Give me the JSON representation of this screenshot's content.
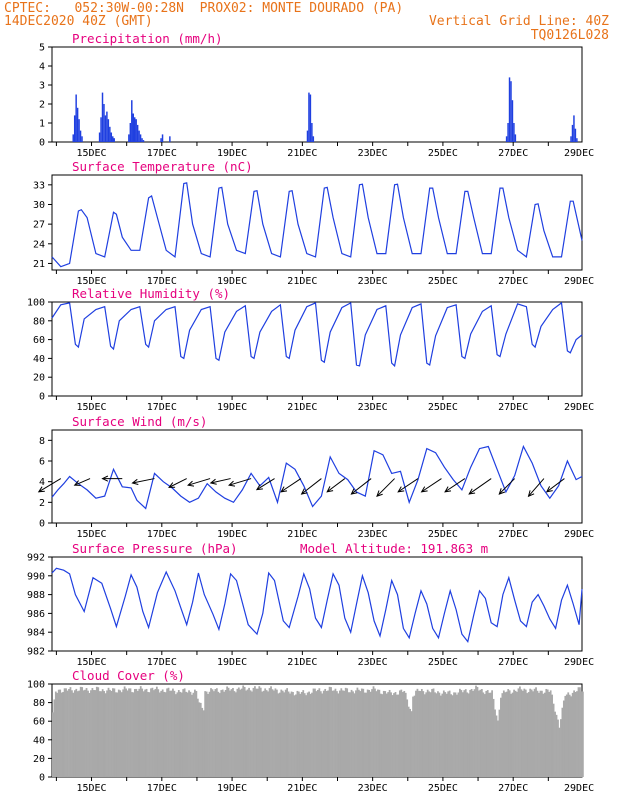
{
  "header": {
    "line1_left": "CPTEC:   052:30W-00:28N  PROX02: MONTE DOURADO (PA)",
    "line2_left": "14DEC2020 40Z (GMT)",
    "line2_right": "Vertical Grid Line: 40Z",
    "line3_right": "TQ0126L028"
  },
  "colors": {
    "header": "#e8731a",
    "title": "#e6007e",
    "series": "#1f3fe0",
    "cloud": "#a9a9a9",
    "wind_arrow": "#000000"
  },
  "chart_data": [
    {
      "id": "precip",
      "type": "bar",
      "title": "Precipitation (mm/h)",
      "xlabel": "",
      "ylabel": "",
      "x_range_hours": [
        0,
        362
      ],
      "ylim": [
        0,
        5
      ],
      "yticks": [
        0,
        1,
        2,
        3,
        4,
        5
      ],
      "xticks": [
        "15DEC",
        "17DEC",
        "19DEC",
        "21DEC",
        "23DEC",
        "25DEC",
        "27DEC",
        "29DEC"
      ],
      "hours": [
        14,
        15,
        16,
        17,
        18,
        19,
        20,
        32,
        33,
        34,
        35,
        36,
        37,
        38,
        39,
        40,
        41,
        42,
        52,
        53,
        54,
        55,
        56,
        57,
        58,
        59,
        60,
        61,
        62,
        74,
        75,
        80,
        174,
        175,
        176,
        177,
        178,
        310,
        311,
        312,
        313,
        314,
        315,
        316,
        354,
        355,
        356,
        357,
        358
      ],
      "values": [
        0.4,
        1.4,
        2.5,
        1.8,
        1.2,
        0.6,
        0.3,
        0.5,
        1.3,
        2.6,
        2.0,
        1.4,
        1.6,
        1.2,
        0.8,
        0.5,
        0.3,
        0.2,
        0.4,
        1.0,
        2.2,
        1.5,
        1.3,
        1.2,
        0.9,
        0.6,
        0.4,
        0.2,
        0.1,
        0.2,
        0.4,
        0.3,
        0.6,
        2.6,
        2.5,
        1.0,
        0.3,
        0.3,
        1.0,
        3.4,
        3.2,
        2.2,
        1.0,
        0.4,
        0.3,
        0.9,
        1.4,
        0.7,
        0.2
      ]
    },
    {
      "id": "temperature",
      "type": "line",
      "title": "Surface Temperature (nC)",
      "xlabel": "",
      "ylabel": "",
      "ylim": [
        20,
        34.5
      ],
      "yticks": [
        21,
        24,
        27,
        30,
        33
      ],
      "xticks": [
        "15DEC",
        "17DEC",
        "19DEC",
        "21DEC",
        "23DEC",
        "25DEC",
        "27DEC",
        "29DEC"
      ],
      "hours": [
        0,
        6,
        12,
        18,
        20,
        24,
        30,
        36,
        42,
        44,
        48,
        54,
        60,
        66,
        68,
        72,
        78,
        84,
        90,
        92,
        96,
        102,
        108,
        114,
        116,
        120,
        126,
        132,
        138,
        140,
        144,
        150,
        156,
        162,
        164,
        168,
        174,
        180,
        186,
        188,
        192,
        198,
        204,
        210,
        212,
        216,
        222,
        228,
        234,
        236,
        240,
        246,
        252,
        258,
        260,
        264,
        270,
        276,
        282,
        284,
        288,
        294,
        300,
        306,
        308,
        312,
        318,
        324,
        330,
        332,
        336,
        342,
        348,
        354,
        356,
        362
      ],
      "values": [
        22,
        20.5,
        21,
        29,
        29.2,
        28,
        22.5,
        22,
        28.8,
        28.5,
        25,
        23,
        23,
        31,
        31.3,
        28,
        23,
        22,
        33.2,
        33.3,
        27,
        22.5,
        22,
        32.5,
        32.6,
        27,
        23,
        22.5,
        32,
        32.1,
        27,
        22.5,
        22,
        32,
        32.1,
        27,
        22.5,
        22,
        32.5,
        32.6,
        28,
        22.5,
        22,
        33,
        33.1,
        28,
        22.5,
        22.5,
        33,
        33.1,
        28,
        22.5,
        22.5,
        32.5,
        32.5,
        28,
        22.5,
        22.5,
        32,
        32,
        28,
        22.5,
        22.5,
        32.5,
        32.5,
        28,
        23,
        22,
        30,
        30.1,
        26,
        22,
        22,
        30.5,
        30.5,
        24.5
      ]
    },
    {
      "id": "humidity",
      "type": "line",
      "title": "Relative Humidity (%)",
      "xlabel": "",
      "ylabel": "",
      "ylim": [
        0,
        100
      ],
      "yticks": [
        0,
        20,
        40,
        60,
        80,
        100
      ],
      "xticks": [
        "15DEC",
        "17DEC",
        "19DEC",
        "21DEC",
        "23DEC",
        "25DEC",
        "27DEC",
        "29DEC"
      ],
      "hours": [
        0,
        6,
        12,
        16,
        18,
        22,
        30,
        36,
        40,
        42,
        46,
        54,
        60,
        64,
        66,
        70,
        78,
        84,
        88,
        90,
        94,
        102,
        108,
        112,
        114,
        118,
        126,
        132,
        136,
        138,
        142,
        150,
        156,
        160,
        162,
        166,
        174,
        180,
        184,
        186,
        190,
        198,
        204,
        208,
        210,
        214,
        222,
        228,
        232,
        234,
        238,
        246,
        252,
        256,
        258,
        262,
        270,
        276,
        280,
        282,
        286,
        294,
        300,
        304,
        306,
        310,
        318,
        324,
        328,
        330,
        334,
        342,
        348,
        352,
        354,
        358,
        362
      ],
      "values": [
        83,
        97,
        99,
        55,
        52,
        82,
        92,
        95,
        53,
        50,
        80,
        92,
        95,
        55,
        52,
        80,
        92,
        95,
        42,
        40,
        70,
        92,
        95,
        40,
        38,
        68,
        90,
        96,
        42,
        40,
        68,
        90,
        97,
        42,
        40,
        70,
        95,
        99,
        38,
        36,
        68,
        94,
        99,
        33,
        32,
        65,
        92,
        96,
        35,
        32,
        65,
        94,
        98,
        35,
        33,
        64,
        94,
        97,
        42,
        40,
        66,
        90,
        96,
        44,
        42,
        66,
        98,
        95,
        55,
        52,
        74,
        92,
        99,
        48,
        46,
        60,
        65
      ]
    },
    {
      "id": "wind",
      "type": "line",
      "title": "Surface Wind (m/s)",
      "xlabel": "",
      "ylabel": "",
      "ylim": [
        0,
        9
      ],
      "yticks": [
        0,
        2,
        4,
        6,
        8
      ],
      "xticks": [
        "15DEC",
        "17DEC",
        "19DEC",
        "21DEC",
        "23DEC",
        "25DEC",
        "27DEC",
        "29DEC"
      ],
      "hours": [
        0,
        4,
        8,
        12,
        18,
        24,
        30,
        36,
        42,
        48,
        54,
        58,
        64,
        70,
        76,
        82,
        88,
        94,
        100,
        106,
        112,
        118,
        124,
        130,
        136,
        142,
        148,
        154,
        160,
        166,
        172,
        178,
        184,
        190,
        196,
        202,
        208,
        214,
        220,
        226,
        232,
        238,
        244,
        250,
        256,
        262,
        268,
        274,
        280,
        286,
        292,
        298,
        304,
        310,
        316,
        322,
        328,
        334,
        340,
        346,
        352,
        358,
        362
      ],
      "values": [
        2.5,
        3.2,
        3.8,
        4.5,
        3.8,
        3.2,
        2.4,
        2.6,
        5.2,
        3.5,
        3.4,
        2.2,
        1.4,
        4.8,
        4.0,
        3.4,
        2.6,
        2.0,
        2.4,
        3.8,
        3.0,
        2.4,
        2.0,
        3.2,
        4.8,
        3.6,
        4.4,
        2.0,
        5.8,
        5.2,
        3.6,
        1.6,
        2.6,
        6.4,
        4.8,
        4.2,
        3.0,
        2.6,
        7.0,
        6.6,
        4.8,
        5.0,
        2.0,
        4.2,
        7.2,
        6.8,
        5.4,
        4.2,
        3.2,
        5.4,
        7.2,
        7.4,
        5.2,
        3.0,
        4.6,
        7.4,
        5.8,
        3.6,
        2.4,
        3.6,
        6.0,
        4.2,
        4.5
      ],
      "vectors": {
        "hours": [
          6,
          26,
          48,
          70,
          92,
          108,
          122,
          136,
          152,
          170,
          184,
          200,
          218,
          234,
          250,
          266,
          282,
          300,
          316,
          336,
          350
        ],
        "u": [
          -1.0,
          -0.7,
          -0.9,
          -1.0,
          -0.8,
          -1.0,
          -0.9,
          -1.0,
          -0.8,
          -0.9,
          -0.9,
          -0.8,
          -0.9,
          -0.8,
          -0.9,
          -0.9,
          -0.9,
          -1.0,
          -0.7,
          -0.7,
          -0.8
        ],
        "v": [
          -0.6,
          -0.3,
          0.0,
          -0.2,
          -0.4,
          -0.3,
          -0.2,
          -0.3,
          -0.5,
          -0.6,
          -0.7,
          -0.6,
          -0.7,
          -0.8,
          -0.6,
          -0.6,
          -0.6,
          -0.7,
          -0.7,
          -0.8,
          -0.6
        ]
      }
    },
    {
      "id": "pressure",
      "type": "line",
      "title": "Surface Pressure (hPa)",
      "subtitle": "Model Altitude: 191.863 m",
      "xlabel": "",
      "ylabel": "",
      "ylim": [
        982,
        992
      ],
      "yticks": [
        982,
        984,
        986,
        988,
        990,
        992
      ],
      "xticks": [
        "15DEC",
        "17DEC",
        "19DEC",
        "21DEC",
        "23DEC",
        "25DEC",
        "27DEC",
        "29DEC"
      ],
      "hours": [
        0,
        3,
        8,
        12,
        16,
        22,
        28,
        34,
        40,
        44,
        50,
        54,
        58,
        62,
        66,
        72,
        78,
        84,
        88,
        92,
        96,
        100,
        104,
        110,
        114,
        118,
        122,
        126,
        134,
        140,
        144,
        148,
        152,
        158,
        162,
        168,
        172,
        176,
        180,
        184,
        188,
        192,
        196,
        200,
        204,
        208,
        212,
        216,
        220,
        224,
        228,
        232,
        236,
        240,
        244,
        248,
        252,
        256,
        260,
        264,
        268,
        272,
        276,
        280,
        284,
        288,
        292,
        296,
        300,
        304,
        308,
        312,
        316,
        320,
        324,
        328,
        332,
        336,
        340,
        344,
        348,
        352,
        356,
        360,
        362
      ],
      "values": [
        990.3,
        990.8,
        990.6,
        990.2,
        988.0,
        986.2,
        989.8,
        989.2,
        986.5,
        984.6,
        987.8,
        990.1,
        988.8,
        986.2,
        984.5,
        988.2,
        990.4,
        988.4,
        986.6,
        984.8,
        987.2,
        990.3,
        988.0,
        985.9,
        984.3,
        987.0,
        990.2,
        989.5,
        984.8,
        983.8,
        986.0,
        990.3,
        989.5,
        985.2,
        984.5,
        987.8,
        990.2,
        988.6,
        985.5,
        984.5,
        987.4,
        990.2,
        989.0,
        985.5,
        984.0,
        987.0,
        990.0,
        988.2,
        985.2,
        983.6,
        986.4,
        989.5,
        988.0,
        984.4,
        983.4,
        986.0,
        988.4,
        987.0,
        984.4,
        983.4,
        986.0,
        988.4,
        986.4,
        983.8,
        983.0,
        985.8,
        988.4,
        987.6,
        985.0,
        984.6,
        988.0,
        989.8,
        987.4,
        985.2,
        984.6,
        987.2,
        988.0,
        986.8,
        985.4,
        984.4,
        987.4,
        989.0,
        987.0,
        984.8,
        988.6
      ]
    },
    {
      "id": "cloud",
      "type": "area",
      "title": "Cloud Cover (%)",
      "xlabel": "",
      "ylabel": "",
      "ylim": [
        0,
        100
      ],
      "yticks": [
        0,
        20,
        40,
        60,
        80,
        100
      ],
      "xticks": [
        "15DEC",
        "17DEC",
        "19DEC",
        "21DEC",
        "23DEC",
        "25DEC",
        "27DEC",
        "29DEC"
      ],
      "hours": [
        0,
        2,
        4,
        8,
        12,
        20,
        30,
        40,
        50,
        60,
        70,
        80,
        90,
        98,
        100,
        103,
        104,
        110,
        120,
        130,
        140,
        150,
        160,
        170,
        180,
        190,
        200,
        210,
        220,
        230,
        240,
        245,
        246,
        250,
        260,
        270,
        280,
        290,
        300,
        304,
        306,
        310,
        320,
        330,
        340,
        346,
        350,
        360,
        362
      ],
      "values": [
        68,
        92,
        94,
        93,
        94,
        94,
        94,
        93,
        94,
        94,
        94,
        93,
        92,
        92,
        78,
        74,
        92,
        93,
        94,
        95,
        95,
        94,
        92,
        90,
        93,
        94,
        93,
        93,
        94,
        90,
        92,
        70,
        88,
        93,
        92,
        90,
        92,
        95,
        90,
        60,
        88,
        92,
        94,
        93,
        92,
        55,
        88,
        94,
        93
      ]
    }
  ]
}
